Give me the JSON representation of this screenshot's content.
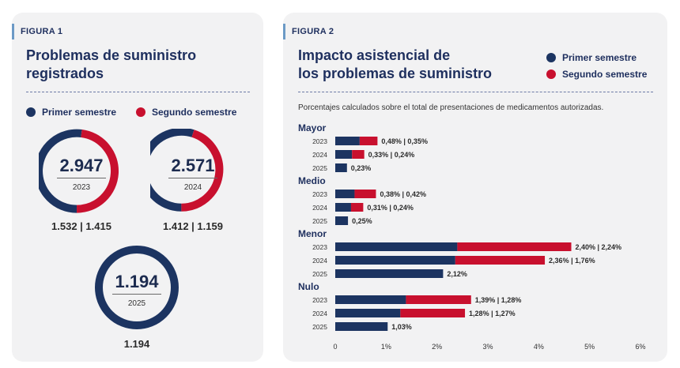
{
  "figure1": {
    "tag": "FIGURA 1",
    "title_line1": "Problemas de suministro",
    "title_line2": "registrados",
    "legend": {
      "first": "Primer semestre",
      "second": "Segundo semestre"
    },
    "colors": {
      "first": "#1c3461",
      "second": "#c8102e"
    },
    "donuts": [
      {
        "year": "2023",
        "total": "2.947",
        "split": "1.532 | 1.415",
        "first": 1532,
        "second": 1415
      },
      {
        "year": "2024",
        "total": "2.571",
        "split": "1.412 | 1.159",
        "first": 1412,
        "second": 1159
      },
      {
        "year": "2025",
        "total": "1.194",
        "split": "1.194",
        "first": 1194,
        "second": 0
      }
    ]
  },
  "figure2": {
    "tag": "FIGURA 2",
    "title_line1": "Impacto asistencial de",
    "title_line2": "los problemas de suministro",
    "legend": {
      "first": "Primer semestre",
      "second": "Segundo semestre"
    },
    "note": "Porcentajes calculados sobre el total de presentaciones de medicamentos autorizadas."
  },
  "chart_data": {
    "type": "bar",
    "orientation": "horizontal-stacked",
    "title": "Impacto asistencial de los problemas de suministro",
    "xlim": [
      0,
      6
    ],
    "x_ticks": [
      "0",
      "1%",
      "2%",
      "3%",
      "4%",
      "5%",
      "6%"
    ],
    "series_names": [
      "Primer semestre",
      "Segundo semestre"
    ],
    "groups": [
      {
        "name": "Mayor",
        "rows": [
          {
            "year": "2023",
            "first": 0.48,
            "second": 0.35,
            "label": "0,48% | 0,35%"
          },
          {
            "year": "2024",
            "first": 0.33,
            "second": 0.24,
            "label": "0,33% | 0,24%"
          },
          {
            "year": "2025",
            "first": 0.23,
            "second": 0,
            "label": "0,23%"
          }
        ]
      },
      {
        "name": "Medio",
        "rows": [
          {
            "year": "2023",
            "first": 0.38,
            "second": 0.42,
            "label": "0,38% | 0,42%"
          },
          {
            "year": "2024",
            "first": 0.31,
            "second": 0.24,
            "label": "0,31% | 0,24%"
          },
          {
            "year": "2025",
            "first": 0.25,
            "second": 0,
            "label": "0,25%"
          }
        ]
      },
      {
        "name": "Menor",
        "rows": [
          {
            "year": "2023",
            "first": 2.4,
            "second": 2.24,
            "label": "2,40% | 2,24%"
          },
          {
            "year": "2024",
            "first": 2.36,
            "second": 1.76,
            "label": "2,36% | 1,76%"
          },
          {
            "year": "2025",
            "first": 2.12,
            "second": 0,
            "label": "2,12%"
          }
        ]
      },
      {
        "name": "Nulo",
        "rows": [
          {
            "year": "2023",
            "first": 1.39,
            "second": 1.28,
            "label": "1,39% | 1,28%"
          },
          {
            "year": "2024",
            "first": 1.28,
            "second": 1.27,
            "label": "1,28% | 1,27%"
          },
          {
            "year": "2025",
            "first": 1.03,
            "second": 0,
            "label": "1,03%"
          }
        ]
      }
    ]
  }
}
